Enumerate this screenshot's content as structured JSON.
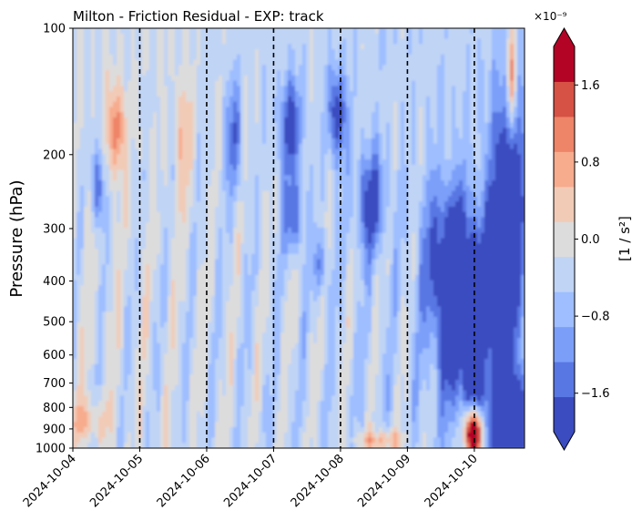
{
  "chart_data": {
    "type": "heatmap",
    "plot_kind": "filled-contour time-pressure section",
    "title": "Milton - Friction Residual - EXP: track",
    "ylabel": "Pressure (hPa)",
    "xlabel": "",
    "y_scale": "log",
    "y_inverted": true,
    "ylim": [
      1000,
      100
    ],
    "yticks": [
      100,
      200,
      300,
      400,
      500,
      600,
      700,
      800,
      900,
      1000
    ],
    "ytick_labels": [
      "100",
      "200",
      "300",
      "400",
      "500",
      "600",
      "700",
      "800",
      "900",
      "1000"
    ],
    "x_range": [
      "2024-10-04",
      "2024-10-10 18:00"
    ],
    "xticks": [
      "2024-10-04",
      "2024-10-05",
      "2024-10-06",
      "2024-10-07",
      "2024-10-08",
      "2024-10-09",
      "2024-10-10"
    ],
    "vertical_dashed_lines": [
      "2024-10-05",
      "2024-10-06",
      "2024-10-07",
      "2024-10-08",
      "2024-10-09",
      "2024-10-10"
    ],
    "grid": false,
    "colorbar": {
      "label": "[1 / s²]",
      "scale_label": "×10⁻⁹",
      "levels": [
        -2.0,
        -1.6,
        -1.2,
        -0.8,
        -0.4,
        0.0,
        0.4,
        0.8,
        1.2,
        1.6,
        2.0
      ],
      "tick_values": [
        -1.6,
        -0.8,
        0.0,
        0.8,
        1.6
      ],
      "tick_labels": [
        "−1.6",
        "−0.8",
        "0.0",
        "0.8",
        "1.6"
      ],
      "extend": "both",
      "colors": [
        "#3b4cc0",
        "#5977e3",
        "#7b9ff9",
        "#9ebeff",
        "#c0d4f5",
        "#dddcdc",
        "#f2cbb7",
        "#f7ac8e",
        "#ee8468",
        "#d65244",
        "#b40426"
      ],
      "under_color": "#3b4cc0",
      "over_color": "#b40426"
    },
    "field_features": [
      {
        "t": [
          4.35,
          4.42
        ],
        "p": [
          180,
          320
        ],
        "v": -1.8
      },
      {
        "t": [
          4.55,
          4.75
        ],
        "p": [
          140,
          220
        ],
        "v": 1.4
      },
      {
        "t": [
          7.0,
          7.6
        ],
        "p": [
          150,
          200
        ],
        "v": -1.8
      },
      {
        "t": [
          7.8,
          8.4
        ],
        "p": [
          150,
          200
        ],
        "v": -1.8
      },
      {
        "t": [
          8.1,
          8.7
        ],
        "p": [
          220,
          300
        ],
        "v": -1.8
      },
      {
        "t": [
          9.4,
          10.8
        ],
        "p": [
          380,
          620
        ],
        "v": -1.8
      },
      {
        "t": [
          10.0,
          10.8
        ],
        "p": [
          720,
          980
        ],
        "v": -1.8
      },
      {
        "t": [
          9.7,
          10.4
        ],
        "p": [
          800,
          990
        ],
        "v": 2.0
      }
    ]
  }
}
